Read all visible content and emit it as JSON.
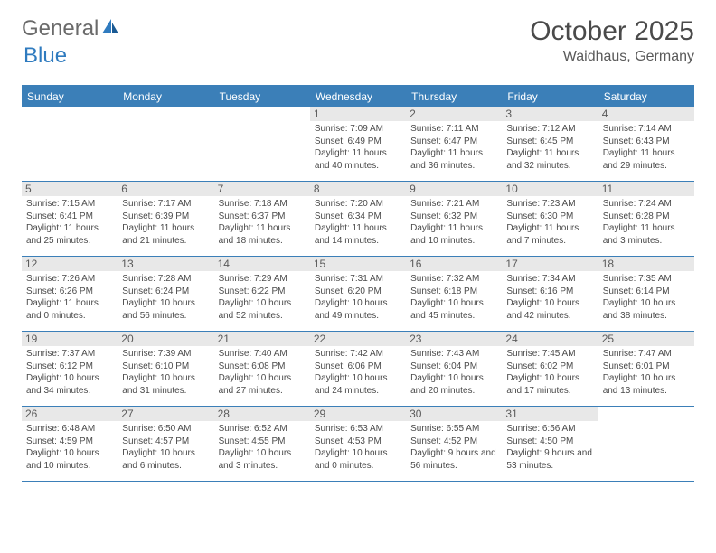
{
  "logo": {
    "textGray": "General",
    "textBlue": "Blue"
  },
  "title": "October 2025",
  "location": "Waidhaus, Germany",
  "colors": {
    "headerBlue": "#3b7fb8",
    "cellGray": "#e8e8e8",
    "text": "#4a4a4a",
    "logoBlue": "#2f7bbf"
  },
  "dayNames": [
    "Sunday",
    "Monday",
    "Tuesday",
    "Wednesday",
    "Thursday",
    "Friday",
    "Saturday"
  ],
  "weeks": [
    [
      {
        "empty": true
      },
      {
        "empty": true
      },
      {
        "empty": true
      },
      {
        "n": "1",
        "sr": "7:09 AM",
        "ss": "6:49 PM",
        "dl": "11 hours and 40 minutes."
      },
      {
        "n": "2",
        "sr": "7:11 AM",
        "ss": "6:47 PM",
        "dl": "11 hours and 36 minutes."
      },
      {
        "n": "3",
        "sr": "7:12 AM",
        "ss": "6:45 PM",
        "dl": "11 hours and 32 minutes."
      },
      {
        "n": "4",
        "sr": "7:14 AM",
        "ss": "6:43 PM",
        "dl": "11 hours and 29 minutes."
      }
    ],
    [
      {
        "n": "5",
        "sr": "7:15 AM",
        "ss": "6:41 PM",
        "dl": "11 hours and 25 minutes."
      },
      {
        "n": "6",
        "sr": "7:17 AM",
        "ss": "6:39 PM",
        "dl": "11 hours and 21 minutes."
      },
      {
        "n": "7",
        "sr": "7:18 AM",
        "ss": "6:37 PM",
        "dl": "11 hours and 18 minutes."
      },
      {
        "n": "8",
        "sr": "7:20 AM",
        "ss": "6:34 PM",
        "dl": "11 hours and 14 minutes."
      },
      {
        "n": "9",
        "sr": "7:21 AM",
        "ss": "6:32 PM",
        "dl": "11 hours and 10 minutes."
      },
      {
        "n": "10",
        "sr": "7:23 AM",
        "ss": "6:30 PM",
        "dl": "11 hours and 7 minutes."
      },
      {
        "n": "11",
        "sr": "7:24 AM",
        "ss": "6:28 PM",
        "dl": "11 hours and 3 minutes."
      }
    ],
    [
      {
        "n": "12",
        "sr": "7:26 AM",
        "ss": "6:26 PM",
        "dl": "11 hours and 0 minutes."
      },
      {
        "n": "13",
        "sr": "7:28 AM",
        "ss": "6:24 PM",
        "dl": "10 hours and 56 minutes."
      },
      {
        "n": "14",
        "sr": "7:29 AM",
        "ss": "6:22 PM",
        "dl": "10 hours and 52 minutes."
      },
      {
        "n": "15",
        "sr": "7:31 AM",
        "ss": "6:20 PM",
        "dl": "10 hours and 49 minutes."
      },
      {
        "n": "16",
        "sr": "7:32 AM",
        "ss": "6:18 PM",
        "dl": "10 hours and 45 minutes."
      },
      {
        "n": "17",
        "sr": "7:34 AM",
        "ss": "6:16 PM",
        "dl": "10 hours and 42 minutes."
      },
      {
        "n": "18",
        "sr": "7:35 AM",
        "ss": "6:14 PM",
        "dl": "10 hours and 38 minutes."
      }
    ],
    [
      {
        "n": "19",
        "sr": "7:37 AM",
        "ss": "6:12 PM",
        "dl": "10 hours and 34 minutes."
      },
      {
        "n": "20",
        "sr": "7:39 AM",
        "ss": "6:10 PM",
        "dl": "10 hours and 31 minutes."
      },
      {
        "n": "21",
        "sr": "7:40 AM",
        "ss": "6:08 PM",
        "dl": "10 hours and 27 minutes."
      },
      {
        "n": "22",
        "sr": "7:42 AM",
        "ss": "6:06 PM",
        "dl": "10 hours and 24 minutes."
      },
      {
        "n": "23",
        "sr": "7:43 AM",
        "ss": "6:04 PM",
        "dl": "10 hours and 20 minutes."
      },
      {
        "n": "24",
        "sr": "7:45 AM",
        "ss": "6:02 PM",
        "dl": "10 hours and 17 minutes."
      },
      {
        "n": "25",
        "sr": "7:47 AM",
        "ss": "6:01 PM",
        "dl": "10 hours and 13 minutes."
      }
    ],
    [
      {
        "n": "26",
        "sr": "6:48 AM",
        "ss": "4:59 PM",
        "dl": "10 hours and 10 minutes."
      },
      {
        "n": "27",
        "sr": "6:50 AM",
        "ss": "4:57 PM",
        "dl": "10 hours and 6 minutes."
      },
      {
        "n": "28",
        "sr": "6:52 AM",
        "ss": "4:55 PM",
        "dl": "10 hours and 3 minutes."
      },
      {
        "n": "29",
        "sr": "6:53 AM",
        "ss": "4:53 PM",
        "dl": "10 hours and 0 minutes."
      },
      {
        "n": "30",
        "sr": "6:55 AM",
        "ss": "4:52 PM",
        "dl": "9 hours and 56 minutes."
      },
      {
        "n": "31",
        "sr": "6:56 AM",
        "ss": "4:50 PM",
        "dl": "9 hours and 53 minutes."
      },
      {
        "empty": true
      }
    ]
  ],
  "labels": {
    "sunrise": "Sunrise:",
    "sunset": "Sunset:",
    "daylight": "Daylight:"
  }
}
